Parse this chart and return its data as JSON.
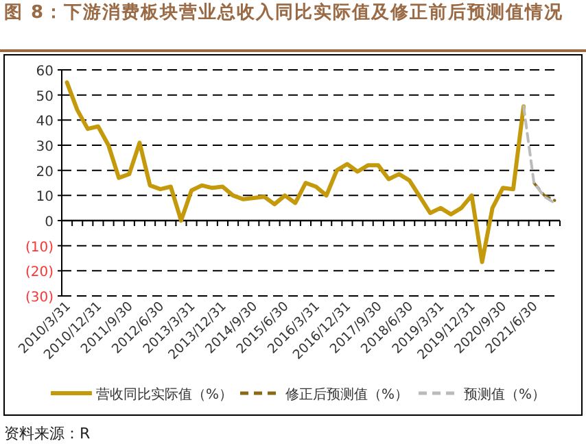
{
  "chart_data": {
    "type": "line",
    "title": "图 8：下游消费板块营业总收入同比实际值及修正前后预测值情况",
    "categories": [
      "2010/3/31",
      null,
      null,
      "2010/12/31",
      null,
      null,
      "2011/9/30",
      null,
      null,
      "2012/6/30",
      null,
      null,
      "2013/3/31",
      null,
      null,
      "2013/12/31",
      null,
      null,
      "2014/9/30",
      null,
      null,
      "2015/6/30",
      null,
      null,
      "2016/3/31",
      null,
      null,
      "2016/12/31",
      null,
      null,
      "2017/9/30",
      null,
      null,
      "2018/6/30",
      null,
      null,
      "2019/3/31",
      null,
      null,
      "2019/12/31",
      null,
      null,
      "2020/9/30",
      null,
      null,
      "2021/6/30",
      null,
      null
    ],
    "series": [
      {
        "name": "营收同比实际值（%）",
        "color": "#c49a0c",
        "line_style": "solid",
        "values": [
          55,
          44,
          36.5,
          37.5,
          30,
          17,
          18.5,
          31,
          14,
          12.5,
          13.5,
          0,
          12,
          14,
          13,
          13.5,
          10,
          8.5,
          9,
          9.5,
          6.5,
          10,
          7,
          15,
          13.5,
          10,
          20,
          22.5,
          19.5,
          22,
          22,
          16.5,
          18.5,
          16,
          9.5,
          3,
          5,
          2.5,
          5,
          10,
          -16.5,
          5,
          13,
          12.5,
          45.5,
          null,
          null,
          null
        ]
      },
      {
        "name": "修正后预测值（%）",
        "color": "#8a6a14",
        "line_style": "dashed",
        "values": [
          null,
          null,
          null,
          null,
          null,
          null,
          null,
          null,
          null,
          null,
          null,
          null,
          null,
          null,
          null,
          null,
          null,
          null,
          null,
          null,
          null,
          null,
          null,
          null,
          null,
          null,
          null,
          null,
          null,
          null,
          null,
          null,
          null,
          null,
          null,
          null,
          null,
          null,
          null,
          null,
          null,
          null,
          null,
          null,
          null,
          15,
          10,
          8
        ]
      },
      {
        "name": "预测值（%）",
        "color": "#bbbbbb",
        "line_style": "dashed",
        "values": [
          null,
          null,
          null,
          null,
          null,
          null,
          null,
          null,
          null,
          null,
          null,
          null,
          null,
          null,
          null,
          null,
          null,
          null,
          null,
          null,
          null,
          null,
          null,
          null,
          null,
          null,
          null,
          null,
          null,
          null,
          null,
          null,
          null,
          null,
          null,
          null,
          null,
          null,
          null,
          null,
          null,
          null,
          null,
          null,
          45.5,
          15,
          9.5,
          7
        ]
      }
    ],
    "ylim": [
      -30,
      60
    ],
    "yticks": [
      {
        "value": -30,
        "label": "(30)"
      },
      {
        "value": -20,
        "label": "(20)"
      },
      {
        "value": -10,
        "label": "(10)"
      },
      0,
      10,
      20,
      30,
      40,
      50,
      60
    ],
    "grid": "y",
    "legend": "bottom",
    "annotations": [
      "资料来源：R"
    ]
  }
}
